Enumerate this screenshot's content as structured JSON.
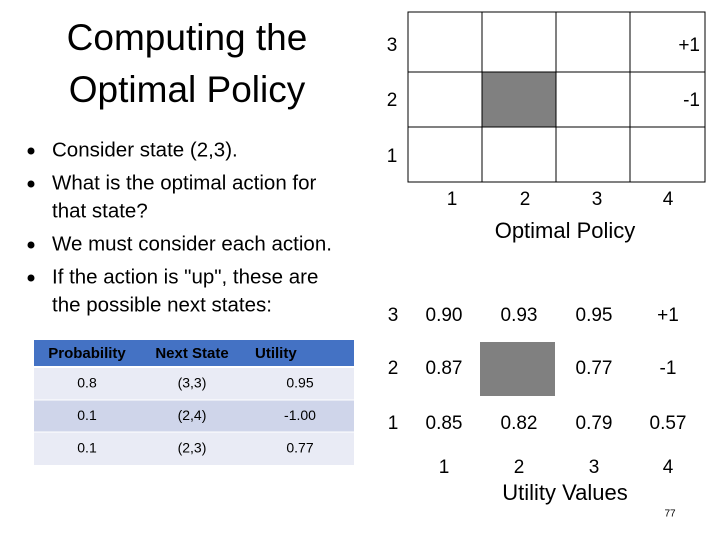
{
  "slide": {
    "title_lines": [
      "Computing the",
      "Optimal Policy"
    ],
    "bullets": [
      [
        "Consider state (2,3)."
      ],
      [
        "What is the optimal action for",
        "that state?"
      ],
      [
        "We must consider each action."
      ],
      [
        "If the action is \"up\", these are",
        "the possible next states:"
      ]
    ],
    "page_number": "77"
  },
  "table": {
    "header": [
      "Probability",
      "Next State",
      "Utility"
    ],
    "rows": [
      [
        "0.8",
        "(3,3)",
        "0.95"
      ],
      [
        "0.1",
        "(2,4)",
        "-1.00"
      ],
      [
        "0.1",
        "(2,3)",
        "0.77"
      ]
    ]
  },
  "policy_grid": {
    "row_labels": [
      "3",
      "2",
      "1"
    ],
    "col_labels": [
      "1",
      "2",
      "3",
      "4"
    ],
    "cells": [
      [
        null,
        null,
        null,
        "+1"
      ],
      [
        null,
        null,
        null,
        "-1"
      ],
      [
        null,
        null,
        null,
        null
      ]
    ],
    "caption": "Optimal Policy"
  },
  "utility_grid": {
    "row_labels": [
      "3",
      "2",
      "1"
    ],
    "col_labels": [
      "1",
      "2",
      "3",
      "4"
    ],
    "cells": [
      [
        "0.90",
        "0.93",
        "0.95",
        "+1"
      ],
      [
        "0.87",
        null,
        "0.77",
        "-1"
      ],
      [
        "0.85",
        "0.82",
        "0.79",
        "0.57"
      ]
    ],
    "caption": "Utility Values"
  }
}
